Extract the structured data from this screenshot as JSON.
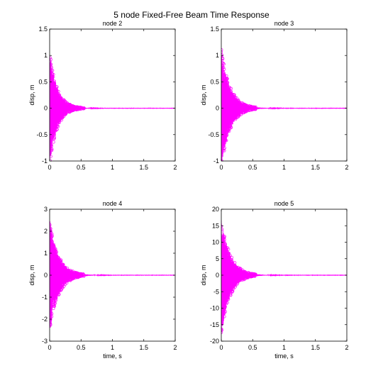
{
  "figure": {
    "title": "5 node Fixed-Free Beam Time Response"
  },
  "colors": {
    "series": "#ff00ff",
    "axes": "#000000",
    "background": "#ffffff"
  },
  "chart_data": [
    {
      "type": "line",
      "title": "node 2",
      "xlabel": "",
      "ylabel": "disp, m",
      "xlim": [
        0,
        2
      ],
      "ylim": [
        -1,
        1.5
      ],
      "xticks": [
        0,
        0.5,
        1,
        1.5,
        2
      ],
      "xtick_labels": [
        "0",
        "0.5",
        "1",
        "1.5",
        "2"
      ],
      "yticks": [
        -1,
        -0.5,
        0,
        0.5,
        1,
        1.5
      ],
      "ytick_labels": [
        "-1",
        "-0.5",
        "0",
        "0.5",
        "1",
        "1.5"
      ],
      "grid": false,
      "series": [
        {
          "marker": "o",
          "envelope": {
            "peak_amplitude": 1.1,
            "decay_time_constant": 0.12,
            "settled_by": 0.9
          }
        }
      ]
    },
    {
      "type": "line",
      "title": "node 3",
      "xlabel": "",
      "ylabel": "disp, m",
      "xlim": [
        0,
        2
      ],
      "ylim": [
        -1,
        1.5
      ],
      "xticks": [
        0,
        0.5,
        1,
        1.5,
        2
      ],
      "xtick_labels": [
        "0",
        "0.5",
        "1",
        "1.5",
        "2"
      ],
      "yticks": [
        -1,
        -0.5,
        0,
        0.5,
        1,
        1.5
      ],
      "ytick_labels": [
        "-1",
        "-0.5",
        "0",
        "0.5",
        "1",
        "1.5"
      ],
      "grid": false,
      "series": [
        {
          "marker": "o",
          "envelope": {
            "peak_amplitude": 1.15,
            "decay_time_constant": 0.14,
            "settled_by": 1.1
          }
        }
      ]
    },
    {
      "type": "line",
      "title": "node 4",
      "xlabel": "time, s",
      "ylabel": "disp, m",
      "xlim": [
        0,
        2
      ],
      "ylim": [
        -3,
        3
      ],
      "xticks": [
        0,
        0.5,
        1,
        1.5,
        2
      ],
      "xtick_labels": [
        "0",
        "0.5",
        "1",
        "1.5",
        "2"
      ],
      "yticks": [
        -3,
        -2,
        -1,
        0,
        1,
        2,
        3
      ],
      "ytick_labels": [
        "-3",
        "-2",
        "-1",
        "0",
        "1",
        "2",
        "3"
      ],
      "grid": false,
      "series": [
        {
          "marker": "o",
          "envelope": {
            "peak_amplitude": 2.6,
            "decay_time_constant": 0.14,
            "settled_by": 1.0
          }
        }
      ]
    },
    {
      "type": "line",
      "title": "node 5",
      "xlabel": "time, s",
      "ylabel": "disp, m",
      "xlim": [
        0,
        2
      ],
      "ylim": [
        -20,
        20
      ],
      "xticks": [
        0,
        0.5,
        1,
        1.5,
        2
      ],
      "xtick_labels": [
        "0",
        "0.5",
        "1",
        "1.5",
        "2"
      ],
      "yticks": [
        -20,
        -15,
        -10,
        -5,
        0,
        5,
        10,
        15,
        20
      ],
      "ytick_labels": [
        "-20",
        "-15",
        "-10",
        "-5",
        "0",
        "5",
        "10",
        "15",
        "20"
      ],
      "grid": false,
      "series": [
        {
          "marker": "o",
          "envelope": {
            "peak_amplitude": 18,
            "decay_time_constant": 0.14,
            "settled_by": 1.1
          }
        }
      ]
    }
  ]
}
